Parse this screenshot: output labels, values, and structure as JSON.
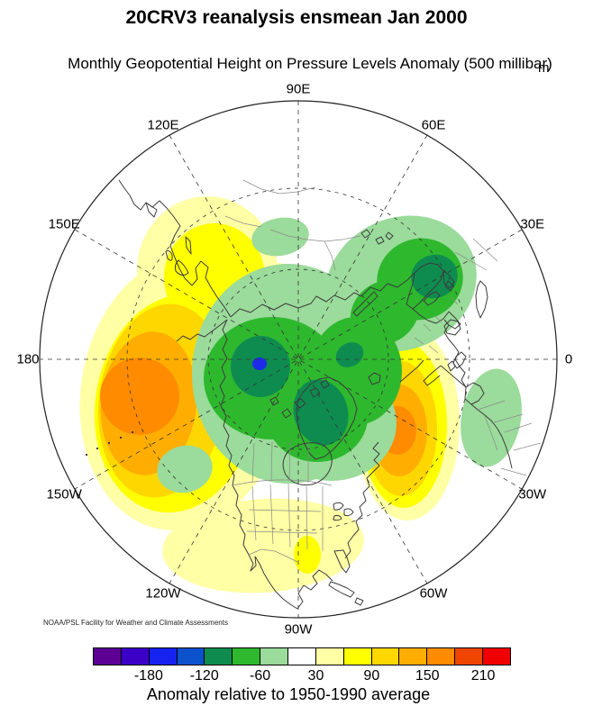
{
  "title": "20CRV3 reanalysis ensmean Jan 2000",
  "subtitle": "Monthly Geopotential Height on Pressure Levels Anomaly (500 millibar)",
  "units_label": "m",
  "attribution": "NOAA/PSL Facility for Weather and Climate Assessments",
  "map": {
    "projection": "north polar stereographic",
    "ring_labels": [
      {
        "label": "90E",
        "angle_deg": 90
      },
      {
        "label": "60E",
        "angle_deg": 60
      },
      {
        "label": "30E",
        "angle_deg": 30
      },
      {
        "label": "0",
        "angle_deg": 0
      },
      {
        "label": "30W",
        "angle_deg": 330
      },
      {
        "label": "60W",
        "angle_deg": 300
      },
      {
        "label": "90W",
        "angle_deg": 270
      },
      {
        "label": "120W",
        "angle_deg": 240
      },
      {
        "label": "150W",
        "angle_deg": 210
      },
      {
        "label": "180",
        "angle_deg": 180
      },
      {
        "label": "150E",
        "angle_deg": 150
      },
      {
        "label": "120E",
        "angle_deg": 120
      }
    ]
  },
  "colorbar": {
    "caption": "Anomaly relative to 1950-1990 average",
    "tick_labels": [
      "-180",
      "-120",
      "-60",
      "30",
      "90",
      "150",
      "210"
    ],
    "levels": [
      -210,
      -180,
      -150,
      -120,
      -90,
      -60,
      -30,
      30,
      60,
      90,
      120,
      150,
      180,
      210
    ],
    "palette": [
      "#5C0095",
      "#3B00C8",
      "#1622F0",
      "#0C52CC",
      "#0E8C50",
      "#2EB82E",
      "#9BDB9B",
      "#FFFFFF",
      "#FFFFA5",
      "#FFFF00",
      "#FFD700",
      "#FFAE00",
      "#FF8C00",
      "#F04500",
      "#F00000"
    ]
  },
  "chart_data": {
    "type": "heatmap",
    "title": "20CRV3 reanalysis ensmean Jan 2000",
    "subtitle": "Monthly Geopotential Height on Pressure Levels Anomaly (500 millibar)",
    "variable": "Geopotential Height anomaly",
    "level": "500 millibar",
    "units": "m",
    "period": "Jan 2000",
    "baseline": "1950-1990 average",
    "projection": "north polar stereographic, 90E at top, 0 at right",
    "contour_levels_m": [
      -210,
      -180,
      -150,
      -120,
      -90,
      -60,
      -30,
      30,
      60,
      90,
      120,
      150,
      180,
      210
    ],
    "colorbar_tick_labels": [
      "-180",
      "-120",
      "-60",
      "30",
      "90",
      "150",
      "210"
    ],
    "anomaly_centers": [
      {
        "region": "North Pacific (near date line)",
        "sign": "positive",
        "approx_peak_m": 165
      },
      {
        "region": "Europe / eastern North Atlantic (Mediterranean sector)",
        "sign": "positive",
        "approx_peak_m": 165
      },
      {
        "region": "Southern United States / Mexico / Gulf",
        "sign": "positive",
        "approx_peak_m": 45
      },
      {
        "region": "Arctic, East Siberian sector (blue minimum)",
        "sign": "negative",
        "approx_peak_m": -160
      },
      {
        "region": "Canadian Arctic / Baffin and Greenland",
        "sign": "negative",
        "approx_peak_m": -110
      },
      {
        "region": "Scandinavia / Northwest Russia",
        "sign": "negative",
        "approx_peak_m": -95
      },
      {
        "region": "Northwest Africa",
        "sign": "negative",
        "approx_peak_m": -45
      },
      {
        "region": "Offshore US West Coast",
        "sign": "negative",
        "approx_peak_m": -45
      }
    ]
  }
}
